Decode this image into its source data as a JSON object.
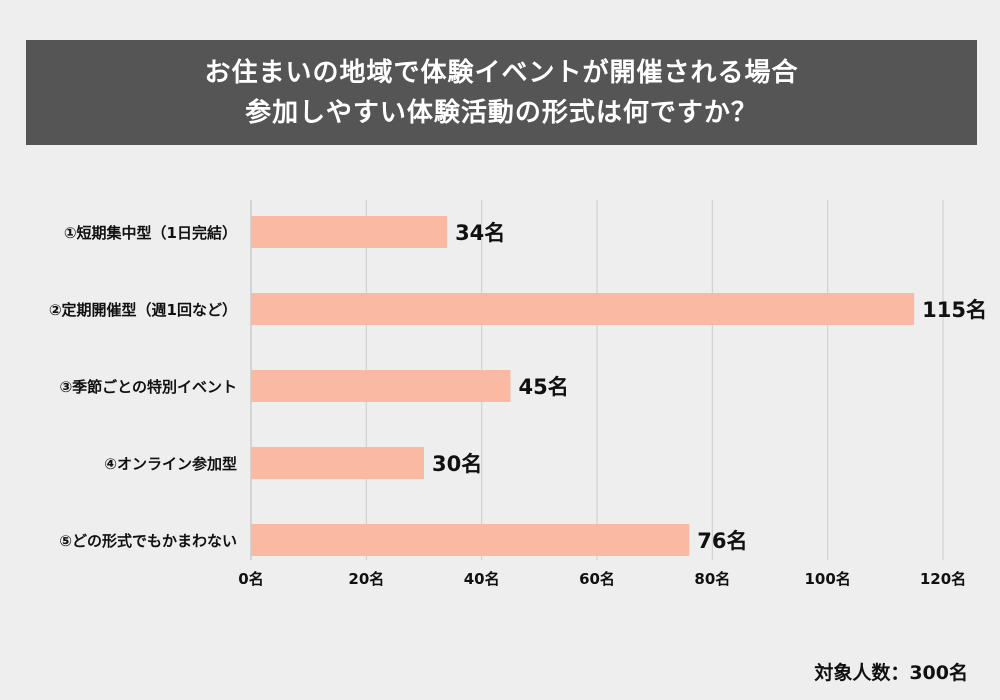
{
  "title": {
    "line1": "お住まいの地域で体験イベントが開催される場合",
    "line2": "参加しやすい体験活動の形式は何ですか？"
  },
  "footer": {
    "respondents": "対象人数：300名"
  },
  "chart_data": {
    "type": "bar",
    "orientation": "horizontal",
    "categories": [
      "①短期集中型（1日完結）",
      "②定期開催型（週1回など）",
      "③季節ごとの特別イベント",
      "④オンライン参加型",
      "⑤どの形式でもかまわない"
    ],
    "values": [
      34,
      115,
      45,
      30,
      76
    ],
    "value_labels": [
      "34名",
      "115名",
      "45名",
      "30名",
      "76名"
    ],
    "unit": "名",
    "xlim": [
      0,
      120
    ],
    "xticks": [
      0,
      20,
      40,
      60,
      80,
      100,
      120
    ],
    "xtick_labels": [
      "0名",
      "20名",
      "40名",
      "60名",
      "80名",
      "100名",
      "120名"
    ],
    "grid": true,
    "colors": {
      "bar": "#f9b9a2",
      "grid": "#cccccc",
      "text": "#111111"
    }
  }
}
